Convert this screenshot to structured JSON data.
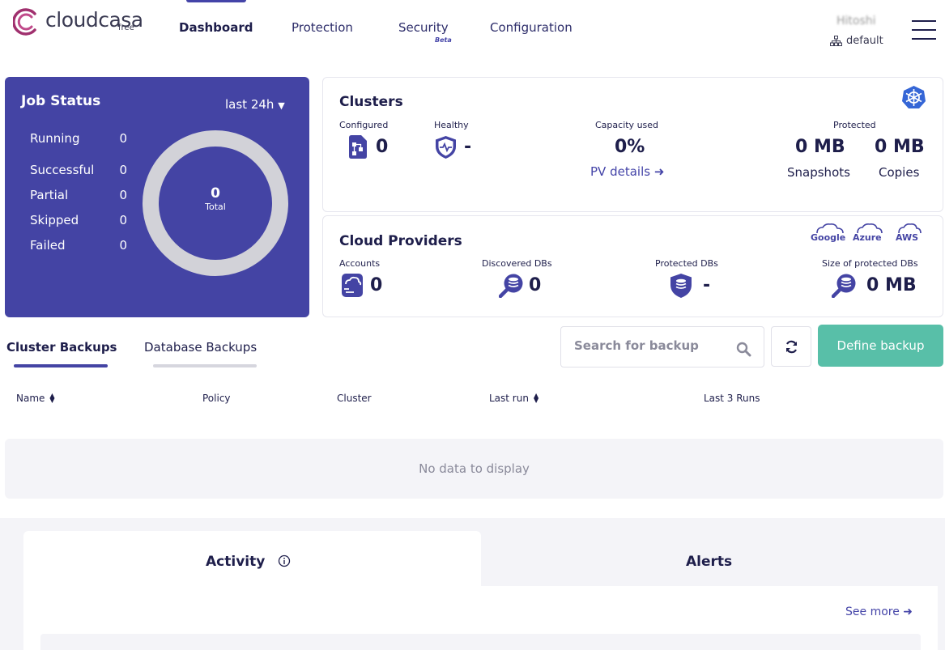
{
  "brand": {
    "name": "cloudcasa",
    "plan": "free"
  },
  "nav": {
    "items": [
      {
        "label": "Dashboard"
      },
      {
        "label": "Protection"
      },
      {
        "label": "Security"
      },
      {
        "label": "Configuration"
      }
    ],
    "security_badge": "Beta",
    "active": "Dashboard"
  },
  "user": {
    "name": "Hitoshi",
    "tenant": "default"
  },
  "job_status": {
    "title": "Job Status",
    "range": "last 24h",
    "rows": [
      {
        "label": "Running",
        "value": "0"
      },
      {
        "label": "Successful",
        "value": "0"
      },
      {
        "label": "Partial",
        "value": "0"
      },
      {
        "label": "Skipped",
        "value": "0"
      },
      {
        "label": "Failed",
        "value": "0"
      }
    ],
    "total_value": "0",
    "total_label": "Total"
  },
  "clusters": {
    "title": "Clusters",
    "configured_label": "Configured",
    "configured_value": "0",
    "healthy_label": "Healthy",
    "healthy_value": "-",
    "capacity_label": "Capacity used",
    "capacity_value": "0%",
    "pv_link": "PV details",
    "protected_label": "Protected",
    "snapshots_value": "0 MB",
    "snapshots_label": "Snapshots",
    "copies_value": "0 MB",
    "copies_label": "Copies"
  },
  "cloud_providers": {
    "title": "Cloud Providers",
    "logos": [
      "Google",
      "Azure",
      "AWS"
    ],
    "accounts_label": "Accounts",
    "accounts_value": "0",
    "discovered_label": "Discovered DBs",
    "discovered_value": "0",
    "protected_label": "Protected DBs",
    "protected_value": "-",
    "size_label": "Size of protected DBs",
    "size_value": "0 MB"
  },
  "backups": {
    "tabs": [
      {
        "label": "Cluster Backups"
      },
      {
        "label": "Database Backups"
      }
    ],
    "search_placeholder": "Search for backup",
    "define_button": "Define backup",
    "columns": [
      {
        "label": "Name"
      },
      {
        "label": "Policy"
      },
      {
        "label": "Cluster"
      },
      {
        "label": "Last run"
      },
      {
        "label": "Last 3 Runs"
      }
    ],
    "empty_message": "No data to display"
  },
  "bottom": {
    "activity_title": "Activity",
    "alerts_title": "Alerts",
    "see_more": "See more"
  },
  "colors": {
    "primary": "#4444a4",
    "accent": "#58bfa8",
    "text": "#1e1e4b",
    "link": "#4444a8"
  }
}
